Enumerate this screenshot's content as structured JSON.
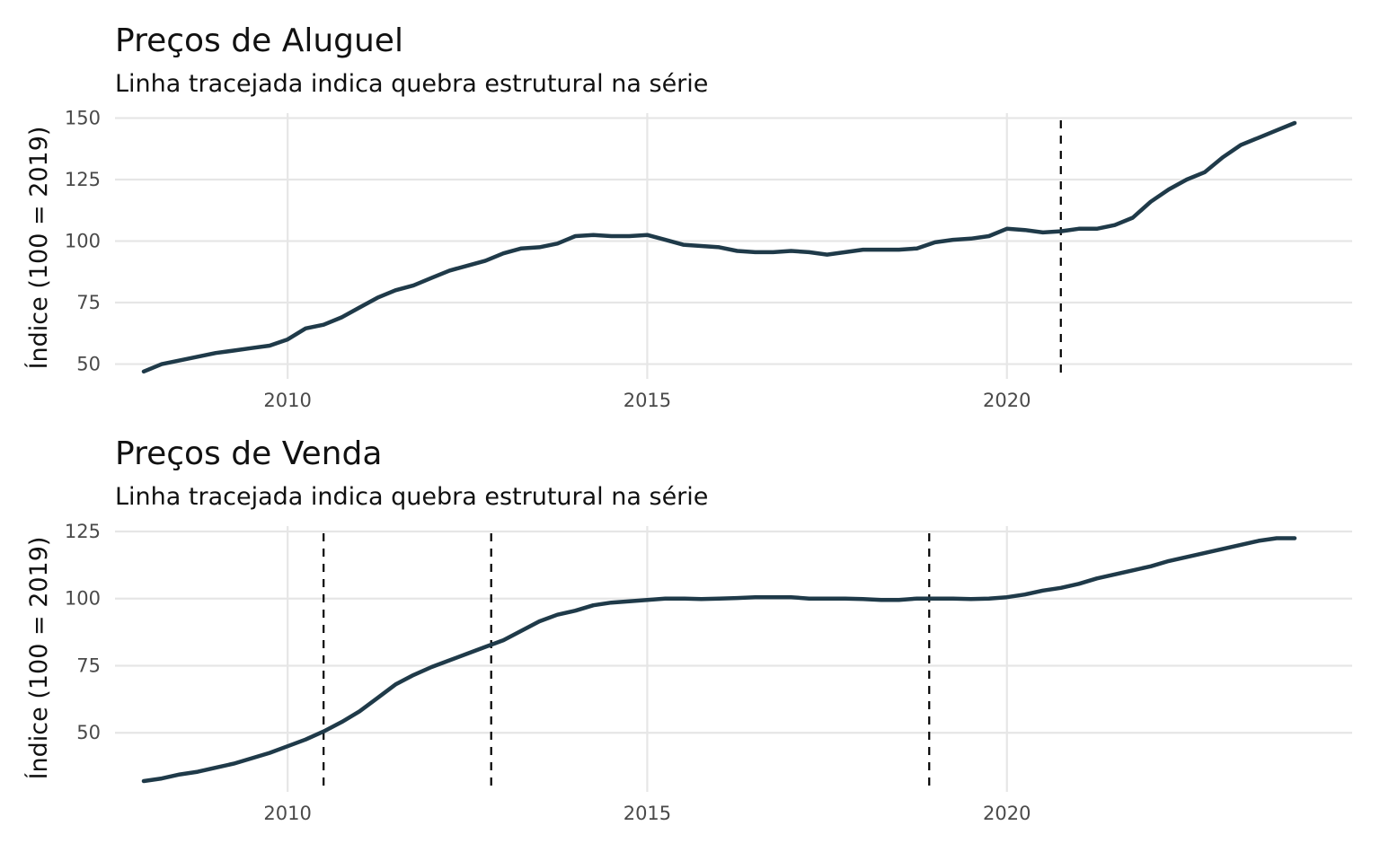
{
  "chart_data": [
    {
      "type": "line",
      "title": "Preços de Aluguel",
      "subtitle": "Linha tracejada indica quebra estrutural na série",
      "ylabel": "Índice (100 = 2019)",
      "xlabel": "",
      "x_ticks": [
        2010,
        2015,
        2020
      ],
      "y_ticks": [
        50,
        75,
        100,
        125,
        150
      ],
      "xlim": [
        2007.6,
        2024.8
      ],
      "ylim": [
        44,
        152
      ],
      "grid": true,
      "line_color": "#1f3a49",
      "structural_breaks": [
        2020.75
      ],
      "series": [
        {
          "x": [
            2008.0,
            2008.25,
            2008.5,
            2008.75,
            2009.0,
            2009.25,
            2009.5,
            2009.75,
            2010.0,
            2010.25,
            2010.5,
            2010.75,
            2011.0,
            2011.25,
            2011.5,
            2011.75,
            2012.0,
            2012.25,
            2012.5,
            2012.75,
            2013.0,
            2013.25,
            2013.5,
            2013.75,
            2014.0,
            2014.25,
            2014.5,
            2014.75,
            2015.0,
            2015.25,
            2015.5,
            2015.75,
            2016.0,
            2016.25,
            2016.5,
            2016.75,
            2017.0,
            2017.25,
            2017.5,
            2017.75,
            2018.0,
            2018.25,
            2018.5,
            2018.75,
            2019.0,
            2019.25,
            2019.5,
            2019.75,
            2020.0,
            2020.25,
            2020.5,
            2020.75,
            2021.0,
            2021.25,
            2021.5,
            2021.75,
            2022.0,
            2022.25,
            2022.5,
            2022.75,
            2023.0,
            2023.25,
            2023.5,
            2023.75,
            2024.0
          ],
          "y": [
            47,
            50,
            51.5,
            53,
            54.5,
            55.5,
            56.5,
            57.5,
            60,
            64.5,
            66,
            69,
            73,
            77,
            80,
            82,
            85,
            88,
            90,
            92,
            95,
            97,
            97.5,
            99,
            102,
            102.5,
            102,
            102,
            102.5,
            100.5,
            98.5,
            98,
            97.5,
            96,
            95.5,
            95.5,
            96,
            95.5,
            94.5,
            95.5,
            96.5,
            96.5,
            96.5,
            97,
            99.5,
            100.5,
            101,
            102,
            105,
            104.5,
            103.5,
            104,
            105,
            105,
            106.5,
            109.5,
            116,
            121,
            125,
            128,
            134,
            139,
            142,
            145,
            148
          ]
        }
      ]
    },
    {
      "type": "line",
      "title": "Preços de Venda",
      "subtitle": "Linha tracejada indica quebra estrutural na série",
      "ylabel": "Índice (100 = 2019)",
      "xlabel": "",
      "x_ticks": [
        2010,
        2015,
        2020
      ],
      "y_ticks": [
        50,
        75,
        100,
        125
      ],
      "xlim": [
        2007.6,
        2024.8
      ],
      "ylim": [
        28,
        127
      ],
      "grid": true,
      "line_color": "#1f3a49",
      "structural_breaks": [
        2010.5,
        2012.83,
        2018.92
      ],
      "series": [
        {
          "x": [
            2008.0,
            2008.25,
            2008.5,
            2008.75,
            2009.0,
            2009.25,
            2009.5,
            2009.75,
            2010.0,
            2010.25,
            2010.5,
            2010.75,
            2011.0,
            2011.25,
            2011.5,
            2011.75,
            2012.0,
            2012.25,
            2012.5,
            2012.75,
            2013.0,
            2013.25,
            2013.5,
            2013.75,
            2014.0,
            2014.25,
            2014.5,
            2014.75,
            2015.0,
            2015.25,
            2015.5,
            2015.75,
            2016.0,
            2016.25,
            2016.5,
            2016.75,
            2017.0,
            2017.25,
            2017.5,
            2017.75,
            2018.0,
            2018.25,
            2018.5,
            2018.75,
            2019.0,
            2019.25,
            2019.5,
            2019.75,
            2020.0,
            2020.25,
            2020.5,
            2020.75,
            2021.0,
            2021.25,
            2021.5,
            2021.75,
            2022.0,
            2022.25,
            2022.5,
            2022.75,
            2023.0,
            2023.25,
            2023.5,
            2023.75,
            2024.0
          ],
          "y": [
            32,
            33,
            34.5,
            35.5,
            37,
            38.5,
            40.5,
            42.5,
            45,
            47.5,
            50.5,
            54,
            58,
            63,
            68,
            71.5,
            74.5,
            77,
            79.5,
            82,
            84.5,
            88,
            91.5,
            94,
            95.5,
            97.5,
            98.5,
            99,
            99.5,
            100,
            100,
            99.8,
            100,
            100.2,
            100.5,
            100.5,
            100.5,
            100,
            100,
            100,
            99.8,
            99.5,
            99.5,
            100,
            100,
            100,
            99.8,
            100,
            100.5,
            101.5,
            103,
            104,
            105.5,
            107.5,
            109,
            110.5,
            112,
            114,
            115.5,
            117,
            118.5,
            120,
            121.5,
            122.5,
            122.5
          ]
        }
      ]
    }
  ]
}
